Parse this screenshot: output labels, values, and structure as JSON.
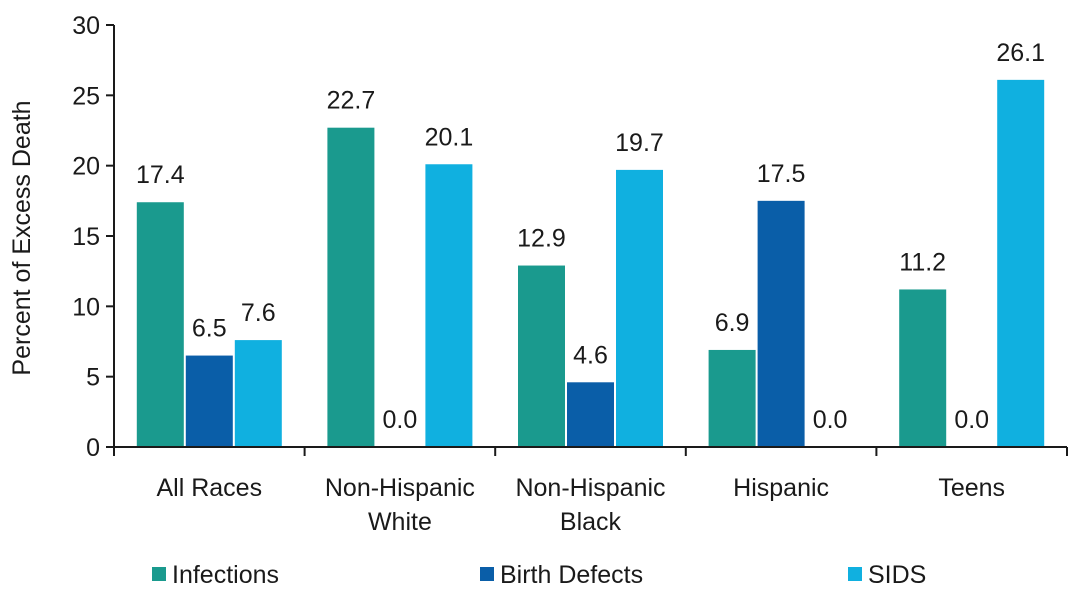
{
  "chart_data": {
    "type": "bar",
    "title": "",
    "xlabel": "",
    "ylabel": "Percent of Excess Death",
    "ylim": [
      0,
      30
    ],
    "yticks": [
      0,
      5,
      10,
      15,
      20,
      25,
      30
    ],
    "grid": false,
    "legend_position": "bottom",
    "categories": [
      [
        "All Races"
      ],
      [
        "Non-Hispanic",
        "White"
      ],
      [
        "Non-Hispanic",
        "Black"
      ],
      [
        "Hispanic"
      ],
      [
        "Teens"
      ]
    ],
    "series": [
      {
        "name": "Infections",
        "color": "#1a9a8e",
        "values": [
          17.4,
          22.7,
          12.9,
          6.9,
          11.2
        ],
        "labels": [
          "17.4",
          "22.7",
          "12.9",
          "6.9",
          "11.2"
        ]
      },
      {
        "name": "Birth Defects",
        "color": "#0a5ea8",
        "values": [
          6.5,
          0.0,
          4.6,
          17.5,
          0.0
        ],
        "labels": [
          "6.5",
          "0.0",
          "4.6",
          "17.5",
          "0.0"
        ]
      },
      {
        "name": "SIDS",
        "color": "#10b0e0",
        "values": [
          7.6,
          20.1,
          19.7,
          0.0,
          26.1
        ],
        "labels": [
          "7.6",
          "20.1",
          "19.7",
          "0.0",
          "26.1"
        ]
      }
    ]
  }
}
